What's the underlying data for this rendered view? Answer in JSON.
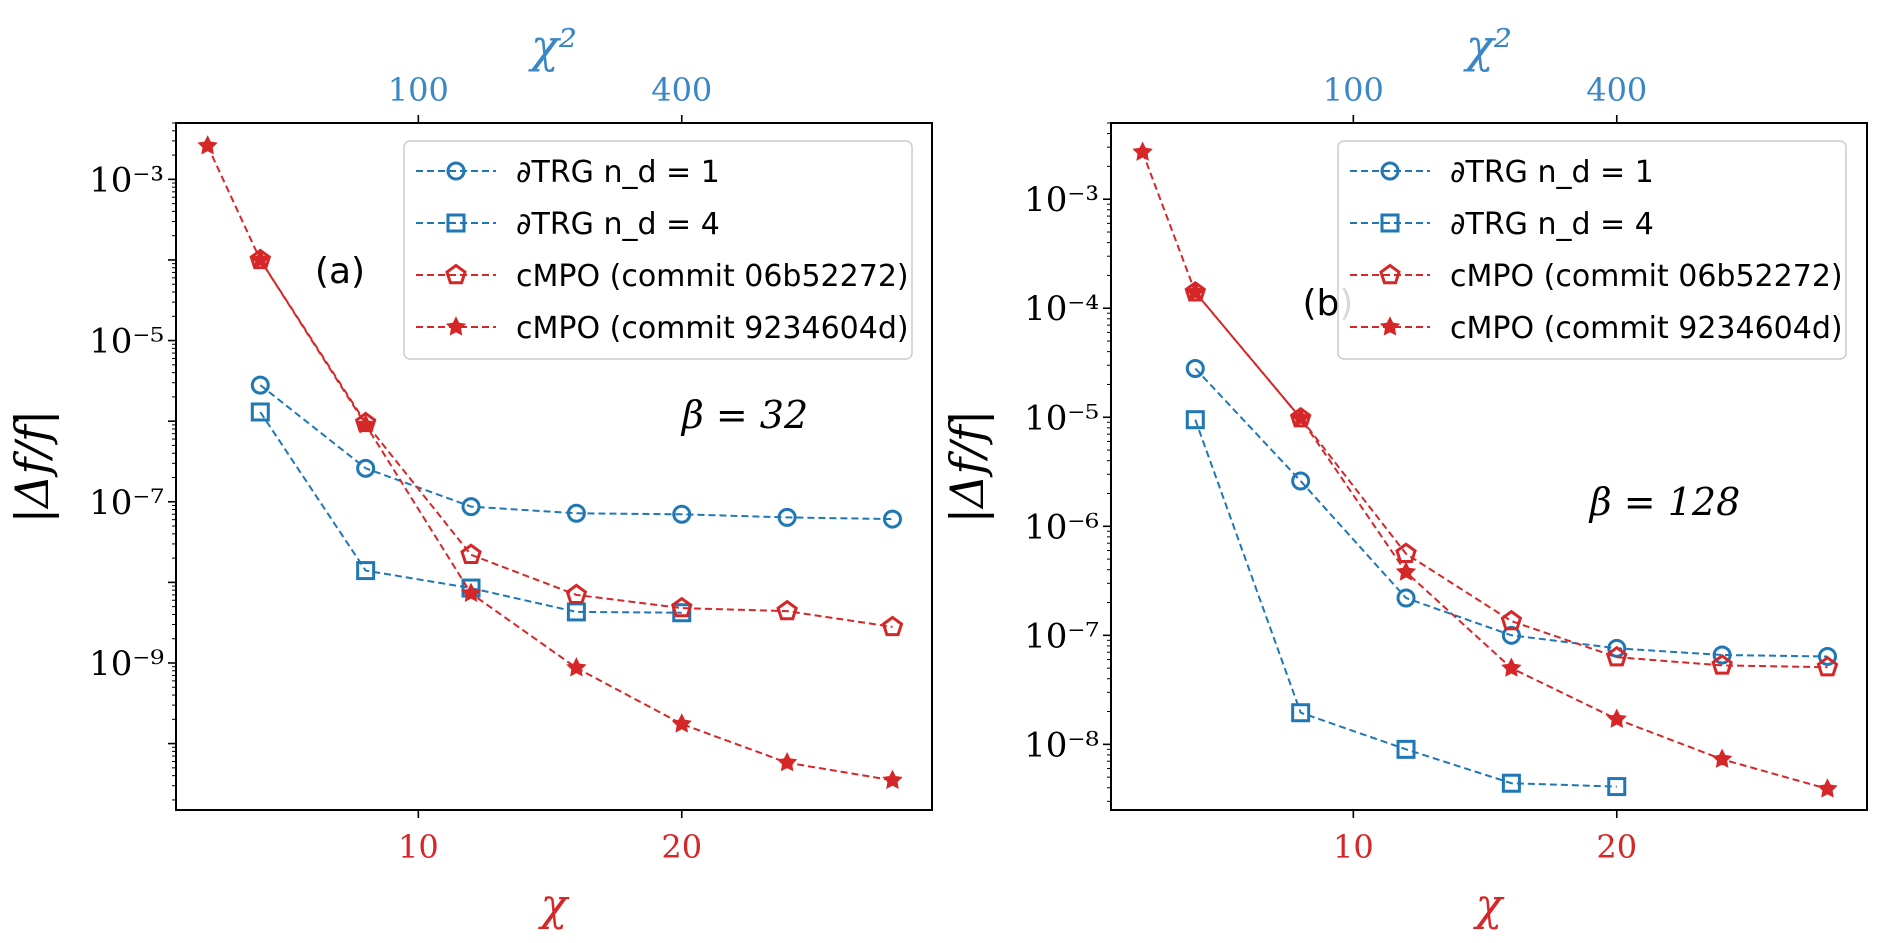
{
  "colors": {
    "blue": "#1f77b4",
    "red": "#d62728",
    "top_axis": "#3a87c7",
    "bottom_axis": "#d62728",
    "frame": "#000000",
    "legend_border": "#cccccc"
  },
  "chart_data": [
    {
      "type": "line",
      "panel_label": "(a)",
      "annotation": "β = 32",
      "xlabel": "χ",
      "x2label": "χ²",
      "ylabel": "|Δf/f|",
      "yscale": "log",
      "xlim": [
        0.8,
        29.5
      ],
      "ylim": [
        1.5e-11,
        0.005
      ],
      "xticks": [
        10,
        20
      ],
      "xtick_labels": [
        "10",
        "20"
      ],
      "x2ticks": [
        100,
        400
      ],
      "x2tick_labels": [
        "100",
        "400"
      ],
      "yticks": [
        1e-09,
        1e-07,
        1e-05,
        0.001
      ],
      "ytick_labels": [
        "10⁻⁹",
        "10⁻⁷",
        "10⁻⁵",
        "10⁻³"
      ],
      "legend_position": "top-right",
      "series": [
        {
          "name": "∂TRG n_d = 1",
          "color": "#1f77b4",
          "marker": "circle",
          "linestyle": "dashed",
          "x": [
            4,
            8,
            12,
            16,
            20,
            24,
            28
          ],
          "y": [
            2.8e-06,
            2.6e-07,
            8.7e-08,
            7.2e-08,
            7e-08,
            6.4e-08,
            6.1e-08
          ]
        },
        {
          "name": "∂TRG n_d = 4",
          "color": "#1f77b4",
          "marker": "square",
          "linestyle": "dashed",
          "x": [
            4,
            8,
            12,
            16,
            20
          ],
          "y": [
            1.3e-06,
            1.4e-08,
            8.5e-09,
            4.3e-09,
            4.2e-09
          ]
        },
        {
          "name": "cMPO (commit 06b52272)",
          "color": "#d62728",
          "marker": "pentagon",
          "linestyle": "dashed",
          "x": [
            4,
            8,
            12,
            16,
            20,
            24,
            28
          ],
          "y": [
            0.0001,
            9.5e-07,
            2.2e-08,
            7e-09,
            4.8e-09,
            4.4e-09,
            2.8e-09
          ]
        },
        {
          "name": "cMPO (commit 9234604d)",
          "color": "#d62728",
          "marker": "star",
          "linestyle": "dashed",
          "x": [
            2,
            4,
            8,
            12,
            16,
            20,
            24,
            28
          ],
          "y": [
            0.0026,
            0.0001,
            9e-07,
            7.3e-09,
            8.7e-10,
            1.75e-10,
            5.8e-11,
            3.5e-11
          ]
        }
      ]
    },
    {
      "type": "line",
      "panel_label": "(b)",
      "annotation": "β = 128",
      "xlabel": "χ",
      "x2label": "χ²",
      "ylabel": "|Δf/f|",
      "yscale": "log",
      "xlim": [
        0.8,
        29.5
      ],
      "ylim": [
        2.5e-09,
        0.005
      ],
      "xticks": [
        10,
        20
      ],
      "xtick_labels": [
        "10",
        "20"
      ],
      "x2ticks": [
        100,
        400
      ],
      "x2tick_labels": [
        "100",
        "400"
      ],
      "yticks": [
        1e-08,
        1e-07,
        1e-06,
        1e-05,
        0.0001,
        0.001
      ],
      "ytick_labels": [
        "10⁻⁸",
        "10⁻⁷",
        "10⁻⁶",
        "10⁻⁵",
        "10⁻⁴",
        "10⁻³"
      ],
      "legend_position": "top-right",
      "series": [
        {
          "name": "∂TRG n_d = 1",
          "color": "#1f77b4",
          "marker": "circle",
          "linestyle": "dashed",
          "x": [
            4,
            8,
            12,
            16,
            20,
            24,
            28
          ],
          "y": [
            2.8e-05,
            2.6e-06,
            2.2e-07,
            1e-07,
            7.6e-08,
            6.6e-08,
            6.4e-08
          ]
        },
        {
          "name": "∂TRG n_d = 4",
          "color": "#1f77b4",
          "marker": "square",
          "linestyle": "dashed",
          "x": [
            4,
            8,
            12,
            16,
            20
          ],
          "y": [
            9.5e-06,
            1.95e-08,
            9e-09,
            4.4e-09,
            4.1e-09
          ]
        },
        {
          "name": "cMPO (commit 06b52272)",
          "color": "#d62728",
          "marker": "pentagon",
          "linestyle": "dashed",
          "x": [
            4,
            8,
            12,
            16,
            20,
            24,
            28
          ],
          "y": [
            0.00014,
            9.8e-06,
            5.6e-07,
            1.35e-07,
            6.3e-08,
            5.3e-08,
            5.1e-08
          ]
        },
        {
          "name": "cMPO (commit 9234604d)",
          "color": "#d62728",
          "marker": "star",
          "linestyle": "dashed",
          "x": [
            2,
            4,
            8,
            12,
            16,
            20,
            24,
            28
          ],
          "y": [
            0.0027,
            0.00014,
            9.8e-06,
            3.8e-07,
            5e-08,
            1.7e-08,
            7.3e-09,
            3.9e-09
          ]
        }
      ]
    }
  ]
}
